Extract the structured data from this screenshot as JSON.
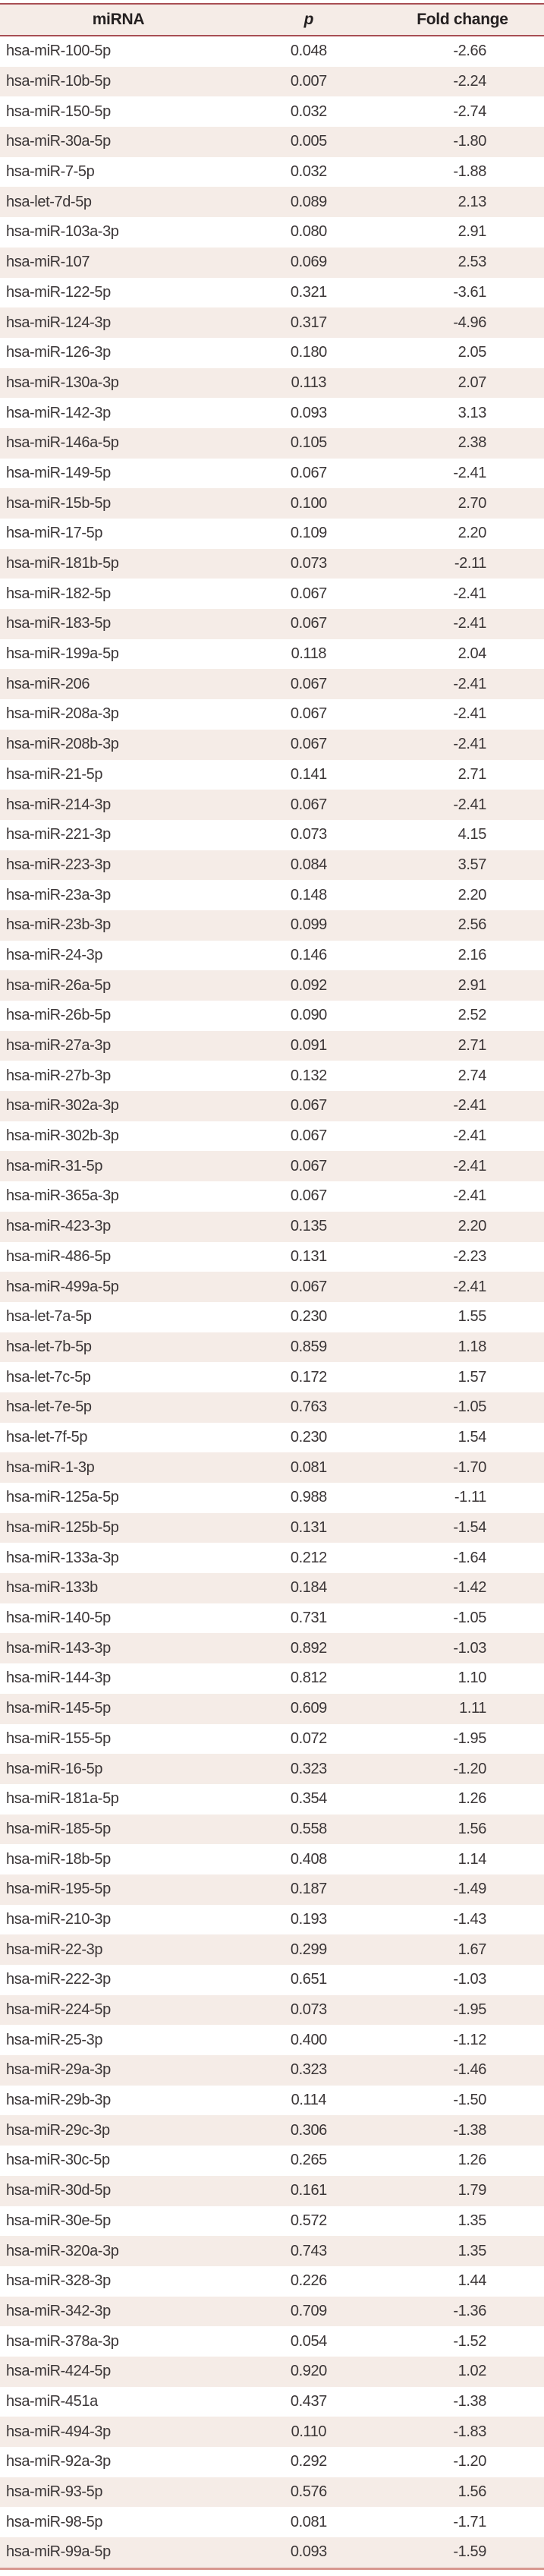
{
  "table": {
    "columns": [
      "miRNA",
      "p",
      "Fold change"
    ],
    "rows": [
      [
        "hsa-miR-100-5p",
        "0.048",
        "-2.66"
      ],
      [
        "hsa-miR-10b-5p",
        "0.007",
        "-2.24"
      ],
      [
        "hsa-miR-150-5p",
        "0.032",
        "-2.74"
      ],
      [
        "hsa-miR-30a-5p",
        "0.005",
        "-1.80"
      ],
      [
        "hsa-miR-7-5p",
        "0.032",
        "-1.88"
      ],
      [
        "hsa-let-7d-5p",
        "0.089",
        "2.13"
      ],
      [
        "hsa-miR-103a-3p",
        "0.080",
        "2.91"
      ],
      [
        "hsa-miR-107",
        "0.069",
        "2.53"
      ],
      [
        "hsa-miR-122-5p",
        "0.321",
        "-3.61"
      ],
      [
        "hsa-miR-124-3p",
        "0.317",
        "-4.96"
      ],
      [
        "hsa-miR-126-3p",
        "0.180",
        "2.05"
      ],
      [
        "hsa-miR-130a-3p",
        "0.113",
        "2.07"
      ],
      [
        "hsa-miR-142-3p",
        "0.093",
        "3.13"
      ],
      [
        "hsa-miR-146a-5p",
        "0.105",
        "2.38"
      ],
      [
        "hsa-miR-149-5p",
        "0.067",
        "-2.41"
      ],
      [
        "hsa-miR-15b-5p",
        "0.100",
        "2.70"
      ],
      [
        "hsa-miR-17-5p",
        "0.109",
        "2.20"
      ],
      [
        "hsa-miR-181b-5p",
        "0.073",
        "-2.11"
      ],
      [
        "hsa-miR-182-5p",
        "0.067",
        "-2.41"
      ],
      [
        "hsa-miR-183-5p",
        "0.067",
        "-2.41"
      ],
      [
        "hsa-miR-199a-5p",
        "0.118",
        "2.04"
      ],
      [
        "hsa-miR-206",
        "0.067",
        "-2.41"
      ],
      [
        "hsa-miR-208a-3p",
        "0.067",
        "-2.41"
      ],
      [
        "hsa-miR-208b-3p",
        "0.067",
        "-2.41"
      ],
      [
        "hsa-miR-21-5p",
        "0.141",
        "2.71"
      ],
      [
        "hsa-miR-214-3p",
        "0.067",
        "-2.41"
      ],
      [
        "hsa-miR-221-3p",
        "0.073",
        "4.15"
      ],
      [
        "hsa-miR-223-3p",
        "0.084",
        "3.57"
      ],
      [
        "hsa-miR-23a-3p",
        "0.148",
        "2.20"
      ],
      [
        "hsa-miR-23b-3p",
        "0.099",
        "2.56"
      ],
      [
        "hsa-miR-24-3p",
        "0.146",
        "2.16"
      ],
      [
        "hsa-miR-26a-5p",
        "0.092",
        "2.91"
      ],
      [
        "hsa-miR-26b-5p",
        "0.090",
        "2.52"
      ],
      [
        "hsa-miR-27a-3p",
        "0.091",
        "2.71"
      ],
      [
        "hsa-miR-27b-3p",
        "0.132",
        "2.74"
      ],
      [
        "hsa-miR-302a-3p",
        "0.067",
        "-2.41"
      ],
      [
        "hsa-miR-302b-3p",
        "0.067",
        "-2.41"
      ],
      [
        "hsa-miR-31-5p",
        "0.067",
        "-2.41"
      ],
      [
        "hsa-miR-365a-3p",
        "0.067",
        "-2.41"
      ],
      [
        "hsa-miR-423-3p",
        "0.135",
        "2.20"
      ],
      [
        "hsa-miR-486-5p",
        "0.131",
        "-2.23"
      ],
      [
        "hsa-miR-499a-5p",
        "0.067",
        "-2.41"
      ],
      [
        "hsa-let-7a-5p",
        "0.230",
        "1.55"
      ],
      [
        "hsa-let-7b-5p",
        "0.859",
        "1.18"
      ],
      [
        "hsa-let-7c-5p",
        "0.172",
        "1.57"
      ],
      [
        "hsa-let-7e-5p",
        "0.763",
        "-1.05"
      ],
      [
        "hsa-let-7f-5p",
        "0.230",
        "1.54"
      ],
      [
        "hsa-miR-1-3p",
        "0.081",
        "-1.70"
      ],
      [
        "hsa-miR-125a-5p",
        "0.988",
        "-1.11"
      ],
      [
        "hsa-miR-125b-5p",
        "0.131",
        "-1.54"
      ],
      [
        "hsa-miR-133a-3p",
        "0.212",
        "-1.64"
      ],
      [
        "hsa-miR-133b",
        "0.184",
        "-1.42"
      ],
      [
        "hsa-miR-140-5p",
        "0.731",
        "-1.05"
      ],
      [
        "hsa-miR-143-3p",
        "0.892",
        "-1.03"
      ],
      [
        "hsa-miR-144-3p",
        "0.812",
        "1.10"
      ],
      [
        "hsa-miR-145-5p",
        "0.609",
        "1.11"
      ],
      [
        "hsa-miR-155-5p",
        "0.072",
        "-1.95"
      ],
      [
        "hsa-miR-16-5p",
        "0.323",
        "-1.20"
      ],
      [
        "hsa-miR-181a-5p",
        "0.354",
        "1.26"
      ],
      [
        "hsa-miR-185-5p",
        "0.558",
        "1.56"
      ],
      [
        "hsa-miR-18b-5p",
        "0.408",
        "1.14"
      ],
      [
        "hsa-miR-195-5p",
        "0.187",
        "-1.49"
      ],
      [
        "hsa-miR-210-3p",
        "0.193",
        "-1.43"
      ],
      [
        "hsa-miR-22-3p",
        "0.299",
        "1.67"
      ],
      [
        "hsa-miR-222-3p",
        "0.651",
        "-1.03"
      ],
      [
        "hsa-miR-224-5p",
        "0.073",
        "-1.95"
      ],
      [
        "hsa-miR-25-3p",
        "0.400",
        "-1.12"
      ],
      [
        "hsa-miR-29a-3p",
        "0.323",
        "-1.46"
      ],
      [
        "hsa-miR-29b-3p",
        "0.114",
        "-1.50"
      ],
      [
        "hsa-miR-29c-3p",
        "0.306",
        "-1.38"
      ],
      [
        "hsa-miR-30c-5p",
        "0.265",
        "1.26"
      ],
      [
        "hsa-miR-30d-5p",
        "0.161",
        "1.79"
      ],
      [
        "hsa-miR-30e-5p",
        "0.572",
        "1.35"
      ],
      [
        "hsa-miR-320a-3p",
        "0.743",
        "1.35"
      ],
      [
        "hsa-miR-328-3p",
        "0.226",
        "1.44"
      ],
      [
        "hsa-miR-342-3p",
        "0.709",
        "-1.36"
      ],
      [
        "hsa-miR-378a-3p",
        "0.054",
        "-1.52"
      ],
      [
        "hsa-miR-424-5p",
        "0.920",
        "1.02"
      ],
      [
        "hsa-miR-451a",
        "0.437",
        "-1.38"
      ],
      [
        "hsa-miR-494-3p",
        "0.110",
        "-1.83"
      ],
      [
        "hsa-miR-92a-3p",
        "0.292",
        "-1.20"
      ],
      [
        "hsa-miR-93-5p",
        "0.576",
        "1.56"
      ],
      [
        "hsa-miR-98-5p",
        "0.081",
        "-1.71"
      ],
      [
        "hsa-miR-99a-5p",
        "0.093",
        "-1.59"
      ]
    ]
  },
  "colors": {
    "border_top": "#a84f54",
    "border_header": "#a84f54",
    "border_bottom": "#d89991",
    "header_bg": "#f5ece7",
    "row_alt_bg": "#f5ece7",
    "text": "#3b3637"
  }
}
